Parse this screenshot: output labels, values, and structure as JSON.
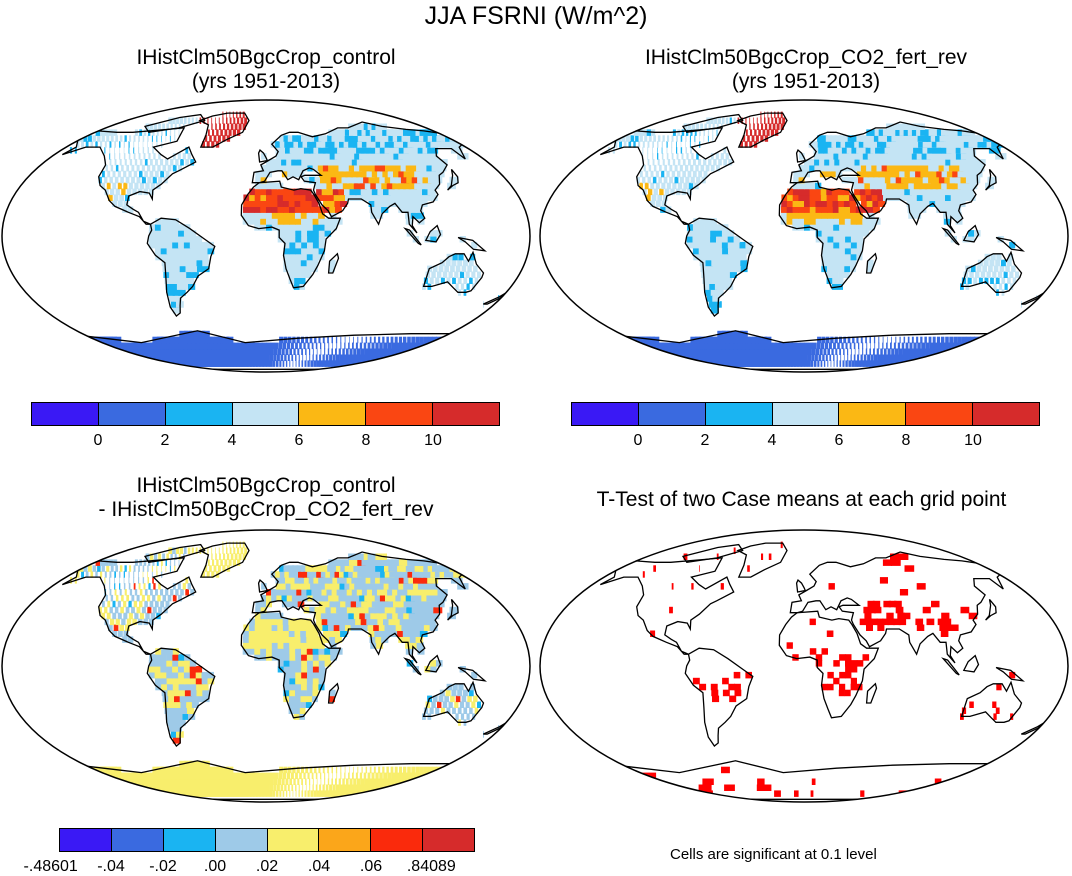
{
  "title": "JJA FSRNI (W/m^2)",
  "panels": [
    {
      "id": "control",
      "title_line1": "IHistClm50BgcCrop_control",
      "title_line2": "(yrs 1951-2013)"
    },
    {
      "id": "co2",
      "title_line1": "IHistClm50BgcCrop_CO2_fert_rev",
      "title_line2": "(yrs 1951-2013)"
    },
    {
      "id": "diff",
      "title_line1": "IHistClm50BgcCrop_control",
      "title_line2": "- IHistClm50BgcCrop_CO2_fert_rev"
    },
    {
      "id": "ttest",
      "title_line1": "T-Test of two Case means at each grid point",
      "title_line2": ""
    }
  ],
  "colorbar_abs": {
    "colors": [
      "#3a19f5",
      "#3a6ae0",
      "#1ab4f2",
      "#c4e4f4",
      "#fbb814",
      "#fa4612",
      "#d62b2b"
    ],
    "ticks": [
      "0",
      "2",
      "4",
      "6",
      "8",
      "10"
    ]
  },
  "colorbar_diff": {
    "colors": [
      "#3a19f5",
      "#3a6ae0",
      "#1ab4f2",
      "#9ecae8",
      "#f8ee6c",
      "#fba61a",
      "#fa2a0c",
      "#d62b2b"
    ],
    "ticks": [
      "-.48601",
      "-.04",
      "-.02",
      ".00",
      ".02",
      ".04",
      ".06",
      ".84089"
    ]
  },
  "ttest_note": "Cells are significant at 0.1 level",
  "map_colors": {
    "ocean": "#ffffff",
    "coast": "#000000",
    "land_abs": "#c4e4f4",
    "cool_abs": "#1ab4f2",
    "warm_abs": "#fbb814",
    "hot_abs": "#fa4612",
    "vhot_abs": "#d62b2b",
    "ice_abs": "#3a6ae0",
    "land_diff": "#9ecae8",
    "pos_diff": "#f8ee6c",
    "neg_diff": "#1ab4f2",
    "hot_diff": "#fa2a0c",
    "ice_diff": "#f8ee6c",
    "sig": "#ff0000"
  }
}
